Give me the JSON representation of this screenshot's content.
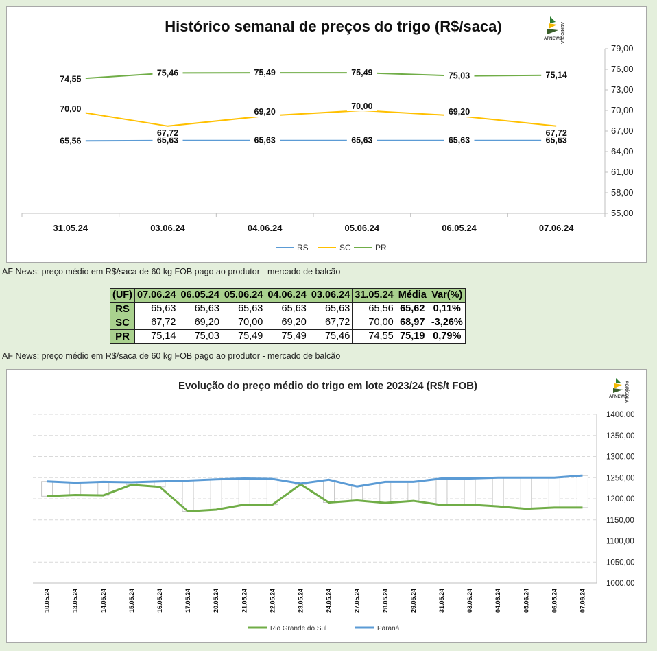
{
  "chart_data": [
    {
      "type": "line",
      "title": "Histórico semanal de preços do trigo (R$/saca)",
      "categories": [
        "31.05.24",
        "03.06.24",
        "04.06.24",
        "05.06.24",
        "06.05.24",
        "07.06.24"
      ],
      "series": [
        {
          "name": "RS",
          "color": "#5b9bd5",
          "values": [
            65.56,
            65.63,
            65.63,
            65.63,
            65.63,
            65.63
          ],
          "labels": [
            "65,56",
            "65,63",
            "65,63",
            "65,63",
            "65,63",
            "65,63"
          ]
        },
        {
          "name": "SC",
          "color": "#ffc000",
          "values": [
            70.0,
            67.72,
            69.2,
            70.0,
            69.2,
            67.72
          ],
          "labels": [
            "70,00",
            "67,72",
            "69,20",
            "70,00",
            "69,20",
            "67,72"
          ]
        },
        {
          "name": "PR",
          "color": "#70ad47",
          "values": [
            74.55,
            75.46,
            75.49,
            75.49,
            75.03,
            75.14
          ],
          "labels": [
            "74,55",
            "75,46",
            "75,49",
            "75,49",
            "75,03",
            "75,14"
          ]
        }
      ],
      "ylim": [
        55,
        79
      ],
      "yticks": [
        "55,00",
        "58,00",
        "61,00",
        "64,00",
        "67,00",
        "70,00",
        "73,00",
        "76,00",
        "79,00"
      ],
      "ytick_values": [
        55,
        58,
        61,
        64,
        67,
        70,
        73,
        76,
        79
      ],
      "legend": "bottom",
      "grid": false
    },
    {
      "type": "line",
      "title": "Evolução do preço médio do trigo em lote 2023/24 (R$/t FOB)",
      "categories": [
        "10.05.24",
        "13.05.24",
        "14.05.24",
        "15.05.24",
        "16.05.24",
        "17.05.24",
        "20.05.24",
        "21.05.24",
        "22.05.24",
        "23.05.24",
        "24.05.24",
        "27.05.24",
        "28.05.24",
        "29.05.24",
        "31.05.24",
        "03.06.24",
        "04.06.24",
        "05.06.24",
        "06.05.24",
        "07.06.24"
      ],
      "series": [
        {
          "name": "Rio Grande do Sul",
          "color": "#70ad47",
          "values": [
            1206,
            1209,
            1208,
            1233,
            1228,
            1170,
            1174,
            1186,
            1186,
            1234,
            1191,
            1196,
            1190,
            1195,
            1185,
            1186,
            1182,
            1176,
            1179,
            1179
          ]
        },
        {
          "name": "Paraná",
          "color": "#5b9bd5",
          "values": [
            1241,
            1238,
            1240,
            1239,
            1241,
            1243,
            1246,
            1248,
            1247,
            1236,
            1245,
            1229,
            1240,
            1240,
            1248,
            1248,
            1250,
            1250,
            1250,
            1255
          ]
        }
      ],
      "ylim": [
        1000,
        1400
      ],
      "yticks": [
        "1000,00",
        "1050,00",
        "1100,00",
        "1150,00",
        "1200,00",
        "1250,00",
        "1300,00",
        "1350,00",
        "1400,00"
      ],
      "ytick_values": [
        1000,
        1050,
        1100,
        1150,
        1200,
        1250,
        1300,
        1350,
        1400
      ],
      "legend": "bottom",
      "grid": true
    }
  ],
  "logo": {
    "text": "AFNEWS",
    "side_text": "AGRÍCOLA"
  },
  "captions": {
    "first": "AF News: preço médio em R$/saca de 60 kg FOB pago ao produtor - mercado de balcão",
    "second": "AF News: preço médio em R$/saca de 60 kg FOB pago ao produtor - mercado de balcão"
  },
  "table": {
    "headers": [
      "(UF)",
      "07.06.24",
      "06.05.24",
      "05.06.24",
      "04.06.24",
      "03.06.24",
      "31.05.24",
      "Média",
      "Var(%)"
    ],
    "rows": [
      {
        "uf": "RS",
        "values": [
          "65,63",
          "65,63",
          "65,63",
          "65,63",
          "65,63",
          "65,56"
        ],
        "media": "65,62",
        "var": "0,11%"
      },
      {
        "uf": "SC",
        "values": [
          "67,72",
          "69,20",
          "70,00",
          "69,20",
          "67,72",
          "70,00"
        ],
        "media": "68,97",
        "var": "-3,26%"
      },
      {
        "uf": "PR",
        "values": [
          "75,14",
          "75,03",
          "75,49",
          "75,49",
          "75,46",
          "74,55"
        ],
        "media": "75,19",
        "var": "0,79%"
      }
    ]
  }
}
